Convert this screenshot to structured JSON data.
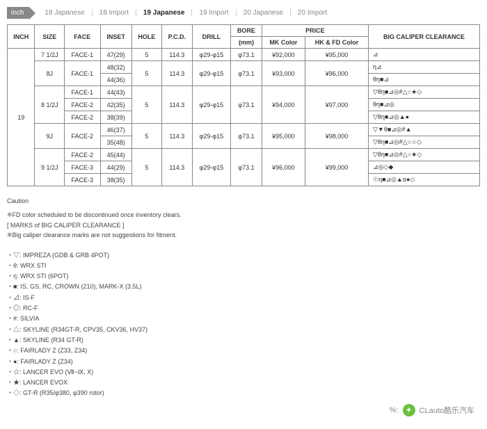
{
  "tabs": {
    "inch_label": "inch",
    "items": [
      "18 Japanese",
      "18 Import",
      "19 Japanese",
      "19 Import",
      "20 Japanese",
      "20 Import"
    ],
    "active_index": 2
  },
  "table": {
    "headers": {
      "inch": "INCH",
      "size": "SIZE",
      "face": "FACE",
      "inset": "INSET",
      "hole": "HOLE",
      "pcd": "P.C.D.",
      "drill": "DRILL",
      "bore": "BORE",
      "bore_sub": "(mm)",
      "price": "PRICE",
      "price_mk": "MK Color",
      "price_hk": "HK & FD Color",
      "clear": "BIG CALIPER CLEARANCE"
    },
    "inch_value": "19",
    "groups": [
      {
        "size": "7 1/2J",
        "rows": [
          {
            "face": "FACE-1",
            "inset": "47(29)",
            "hole": "5",
            "pcd": "114.3",
            "drill": "φ29-φ15",
            "bore": "φ73.1",
            "mk": "¥92,000",
            "hk": "¥95,000",
            "clear": "⊿"
          }
        ]
      },
      {
        "size": "8J",
        "shared": {
          "face": "FACE-1",
          "hole": "5",
          "pcd": "114.3",
          "drill": "φ29-φ15",
          "bore": "φ73.1",
          "mk": "¥93,000",
          "hk": "¥96,000"
        },
        "rows": [
          {
            "inset": "48(32)",
            "clear": "η⊿"
          },
          {
            "inset": "44(36)",
            "clear": "θη■⊿"
          }
        ]
      },
      {
        "size": "8 1/2J",
        "shared": {
          "hole": "5",
          "pcd": "114.3",
          "drill": "φ29-φ15",
          "bore": "φ73.1",
          "mk": "¥94,000",
          "hk": "¥97,000"
        },
        "rows": [
          {
            "face": "FACE-1",
            "inset": "44(43)",
            "clear": "▽θη■⊿◎#△○★◇"
          },
          {
            "face": "FACE-2",
            "inset": "42(35)",
            "clear": "θη■⊿◎"
          },
          {
            "face": "FACE-2",
            "inset": "38(39)",
            "clear": "▽θη■⊿◎▲●"
          }
        ]
      },
      {
        "size": "9J",
        "shared": {
          "face": "FACE-2",
          "hole": "5",
          "pcd": "114.3",
          "drill": "φ29-φ15",
          "bore": "φ73.1",
          "mk": "¥95,000",
          "hk": "¥98,000"
        },
        "rows": [
          {
            "inset": "46(37)",
            "clear": "▽▼θ■⊿◎#▲"
          },
          {
            "inset": "35(48)",
            "clear": "▽θη■⊿◎#△○☆◇"
          }
        ]
      },
      {
        "size": "9 1/2J",
        "shared": {
          "hole": "5",
          "pcd": "114.3",
          "drill": "φ29-φ15",
          "bore": "φ73.1",
          "mk": "¥96,000",
          "hk": "¥99,000"
        },
        "rows": [
          {
            "face": "FACE-2",
            "inset": "45(44)",
            "clear": "▽θη■⊿◎#△○★◇"
          },
          {
            "face": "FACE-3",
            "inset": "44(29)",
            "clear": "⊿◎◇◆"
          },
          {
            "face": "FACE-3",
            "inset": "38(35)",
            "clear": "☉η■⊿◎▲α●◇"
          }
        ]
      }
    ]
  },
  "caution": {
    "header": "Caution",
    "lines": [
      "※FD color scheduled to be discontinued once inventory clears.",
      "[ MARKS of BIG CALIPER CLEARANCE ]",
      "※Big caliper clearance marks are not suggestions for fitment."
    ]
  },
  "legend": [
    "・▽: IMPREZA (GDB & GRB 4POT)",
    "・θ: WRX STI",
    "・η: WRX STI (6POT)",
    "・■: IS, GS, RC, CROWN (210), MARK-X (3.5L)",
    "・⊿: IS-F",
    "・◎: RC-F",
    "・#: SILVIA",
    "・△: SKYLINE (R34GT-R, CPV35, CKV36, HV37)",
    "・▲: SKYLINE (R34 GT-R)",
    "・○: FAIRLADY Z (Z33, Z34)",
    "・●: FAIRLADY Z (Z34)",
    "・☆: LANCER EVO (Ⅶ~Ⅸ, Ⅹ)",
    "・★: LANCER EVOⅩ",
    "・◇: GT-R (R35/φ380, φ390 rotor)"
  ],
  "watermark": {
    "prefix": "%:",
    "text": "CLauto酷乐汽车"
  }
}
